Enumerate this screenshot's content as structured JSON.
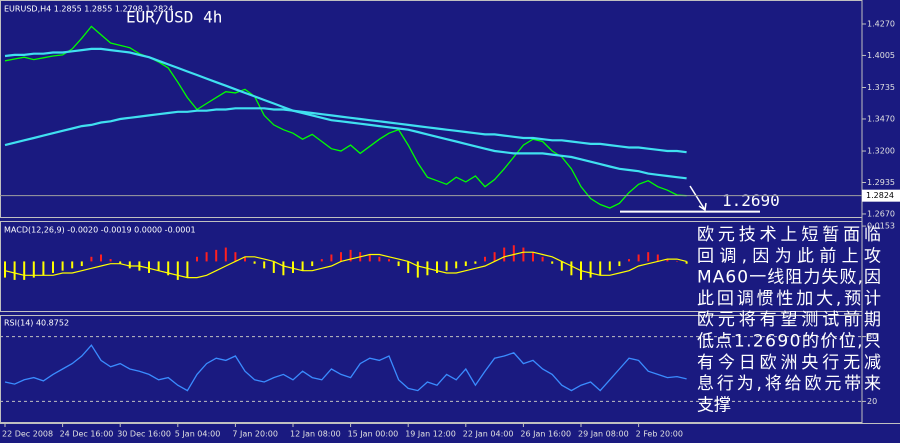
{
  "chart_data": [
    {
      "type": "line",
      "title": "EUR/USD 4h",
      "header": "EURUSD,H4  1.2855 1.2855 1.2798 1.2824",
      "categories": [
        "22 Dec 2008",
        null,
        null,
        null,
        null,
        null,
        "24 Dec 16:00",
        null,
        null,
        null,
        null,
        null,
        "30 Dec 16:00",
        null,
        null,
        null,
        null,
        null,
        "5 Jan 04:00",
        null,
        null,
        null,
        null,
        null,
        "7 Jan 20:00",
        null,
        null,
        null,
        null,
        null,
        "12 Jan 08:00",
        null,
        null,
        null,
        null,
        null,
        "15 Jan 00:00",
        null,
        null,
        null,
        null,
        null,
        "19 Jan 12:00",
        null,
        null,
        null,
        null,
        null,
        "22 Jan 04:00",
        null,
        null,
        null,
        null,
        null,
        "26 Jan 16:00",
        null,
        null,
        null,
        null,
        null,
        "29 Jan 08:00",
        null,
        null,
        null,
        null,
        null,
        "2 Feb 20:00",
        null,
        null,
        null,
        null,
        null
      ],
      "series": [
        {
          "color": "#00ff00",
          "values": [
            1.396,
            1.3975,
            1.399,
            1.397,
            1.3985,
            1.4,
            1.401,
            1.406,
            1.415,
            1.425,
            1.418,
            1.411,
            1.409,
            1.407,
            1.402,
            1.399,
            1.395,
            1.39,
            1.378,
            1.365,
            1.355,
            1.36,
            1.365,
            1.37,
            1.369,
            1.372,
            1.366,
            1.35,
            1.342,
            1.338,
            1.335,
            1.33,
            1.334,
            1.328,
            1.322,
            1.32,
            1.325,
            1.318,
            1.324,
            1.33,
            1.335,
            1.338,
            1.325,
            1.31,
            1.298,
            1.295,
            1.292,
            1.298,
            1.294,
            1.299,
            1.29,
            1.296,
            1.305,
            1.315,
            1.325,
            1.33,
            1.328,
            1.32,
            1.315,
            1.305,
            1.29,
            1.28,
            1.275,
            1.272,
            1.276,
            1.285,
            1.292,
            1.295,
            1.29,
            1.287,
            1.283,
            1.2824
          ]
        },
        {
          "color": "#40e0f0",
          "values": [
            1.325,
            1.327,
            1.329,
            1.331,
            1.333,
            1.335,
            1.337,
            1.339,
            1.341,
            1.342,
            1.344,
            1.345,
            1.347,
            1.348,
            1.349,
            1.35,
            1.351,
            1.352,
            1.353,
            1.353,
            1.354,
            1.354,
            1.355,
            1.355,
            1.356,
            1.356,
            1.356,
            1.356,
            1.355,
            1.355,
            1.354,
            1.353,
            1.352,
            1.351,
            1.35,
            1.349,
            1.348,
            1.347,
            1.346,
            1.345,
            1.344,
            1.343,
            1.342,
            1.341,
            1.34,
            1.339,
            1.338,
            1.337,
            1.336,
            1.335,
            1.334,
            1.334,
            1.333,
            1.332,
            1.331,
            1.331,
            1.33,
            1.329,
            1.329,
            1.328,
            1.327,
            1.326,
            1.326,
            1.325,
            1.324,
            1.323,
            1.323,
            1.322,
            1.321,
            1.32,
            1.32,
            1.319
          ]
        },
        {
          "color": "#40e0f0",
          "values": [
            1.4,
            1.401,
            1.401,
            1.402,
            1.402,
            1.403,
            1.403,
            1.404,
            1.405,
            1.406,
            1.406,
            1.405,
            1.404,
            1.403,
            1.401,
            1.399,
            1.396,
            1.393,
            1.39,
            1.387,
            1.384,
            1.381,
            1.378,
            1.375,
            1.372,
            1.369,
            1.366,
            1.363,
            1.36,
            1.357,
            1.354,
            1.352,
            1.35,
            1.348,
            1.346,
            1.345,
            1.344,
            1.343,
            1.342,
            1.341,
            1.34,
            1.339,
            1.338,
            1.336,
            1.334,
            1.332,
            1.33,
            1.328,
            1.326,
            1.324,
            1.322,
            1.32,
            1.319,
            1.318,
            1.318,
            1.318,
            1.318,
            1.317,
            1.316,
            1.315,
            1.313,
            1.311,
            1.309,
            1.307,
            1.305,
            1.304,
            1.303,
            1.301,
            1.3,
            1.299,
            1.298,
            1.297
          ]
        }
      ],
      "ylim": [
        1.2636,
        1.4472
      ],
      "yticks": [
        {
          "value": 1.267,
          "label": "1.2670"
        },
        {
          "value": 1.2935,
          "label": "1.2935"
        },
        {
          "value": 1.32,
          "label": "1.3200"
        },
        {
          "value": 1.347,
          "label": "1.3470"
        },
        {
          "value": 1.3735,
          "label": "1.3735"
        },
        {
          "value": 1.4005,
          "label": "1.4005"
        },
        {
          "value": 1.427,
          "label": "1.4270"
        }
      ],
      "annotation": {
        "value": 1.269,
        "label": "1.2690"
      }
    },
    {
      "type": "macd",
      "label": "MACD(12,26,9) -0.0020 -0.0019 0.0000 -0.0001",
      "up_color": "#ff2020",
      "down_color": "#ffff00",
      "signal_color": "#ffff00",
      "values": [
        -0.007,
        -0.008,
        -0.008,
        -0.007,
        -0.006,
        -0.005,
        -0.004,
        -0.003,
        -0.002,
        0.002,
        0.003,
        0.001,
        -0.001,
        -0.003,
        -0.004,
        -0.005,
        -0.004,
        -0.006,
        -0.008,
        -0.007,
        0.002,
        0.004,
        0.005,
        0.006,
        0.004,
        0.002,
        -0.001,
        -0.003,
        -0.005,
        -0.006,
        -0.005,
        -0.004,
        -0.002,
        0.001,
        0.003,
        0.004,
        0.005,
        0.004,
        0.003,
        0.002,
        0.001,
        -0.002,
        -0.005,
        -0.007,
        -0.006,
        -0.005,
        -0.004,
        -0.003,
        -0.002,
        -0.001,
        0.002,
        0.004,
        0.006,
        0.007,
        0.006,
        0.004,
        0.002,
        -0.001,
        -0.004,
        -0.006,
        -0.008,
        -0.007,
        -0.006,
        -0.004,
        -0.002,
        0.001,
        0.003,
        0.004,
        0.003,
        0.001,
        0.0,
        -0.001
      ],
      "signal": [
        -0.004,
        -0.005,
        -0.006,
        -0.006,
        -0.006,
        -0.006,
        -0.005,
        -0.005,
        -0.004,
        -0.003,
        -0.002,
        -0.001,
        -0.001,
        -0.002,
        -0.002,
        -0.003,
        -0.004,
        -0.005,
        -0.006,
        -0.007,
        -0.007,
        -0.006,
        -0.004,
        -0.002,
        0.0,
        0.002,
        0.002,
        0.001,
        0.0,
        -0.002,
        -0.003,
        -0.004,
        -0.004,
        -0.003,
        -0.002,
        0.0,
        0.001,
        0.002,
        0.003,
        0.003,
        0.002,
        0.001,
        0.0,
        -0.002,
        -0.003,
        -0.004,
        -0.005,
        -0.005,
        -0.004,
        -0.003,
        -0.002,
        0.0,
        0.002,
        0.003,
        0.004,
        0.004,
        0.003,
        0.002,
        0.0,
        -0.002,
        -0.004,
        -0.005,
        -0.006,
        -0.006,
        -0.005,
        -0.004,
        -0.002,
        -0.001,
        0.0,
        0.001,
        0.001,
        0.0
      ],
      "ylim": [
        -0.0219,
        0.0175
      ],
      "yticks": [
        0.0153
      ]
    },
    {
      "type": "line",
      "label": "RSI(14) 40.8752",
      "series": [
        {
          "color": "#3a8cff",
          "values": [
            38,
            36,
            40,
            42,
            39,
            45,
            50,
            55,
            62,
            72,
            58,
            52,
            55,
            50,
            48,
            45,
            40,
            42,
            35,
            30,
            45,
            55,
            60,
            58,
            62,
            48,
            40,
            38,
            42,
            45,
            40,
            48,
            42,
            40,
            50,
            45,
            42,
            55,
            60,
            58,
            62,
            40,
            32,
            30,
            38,
            35,
            45,
            40,
            50,
            35,
            48,
            60,
            62,
            65,
            55,
            58,
            50,
            45,
            35,
            30,
            35,
            38,
            30,
            40,
            50,
            60,
            58,
            48,
            45,
            42,
            43,
            40.8752
          ]
        }
      ],
      "ylim": [
        0,
        100
      ],
      "yticks": [
        20,
        80
      ],
      "grid": "dashed"
    }
  ],
  "annotation_text": [
    "欧元技术上短暂面临",
    "回调,因为此前上攻",
    "MA60一线阻力失败,因",
    "此回调惯性加大,预计",
    "欧元将有望测试前期",
    "低点1.2690的价位,只",
    "有今日欧洲央行无减",
    "息行为,将给欧元带来",
    "支撑"
  ]
}
